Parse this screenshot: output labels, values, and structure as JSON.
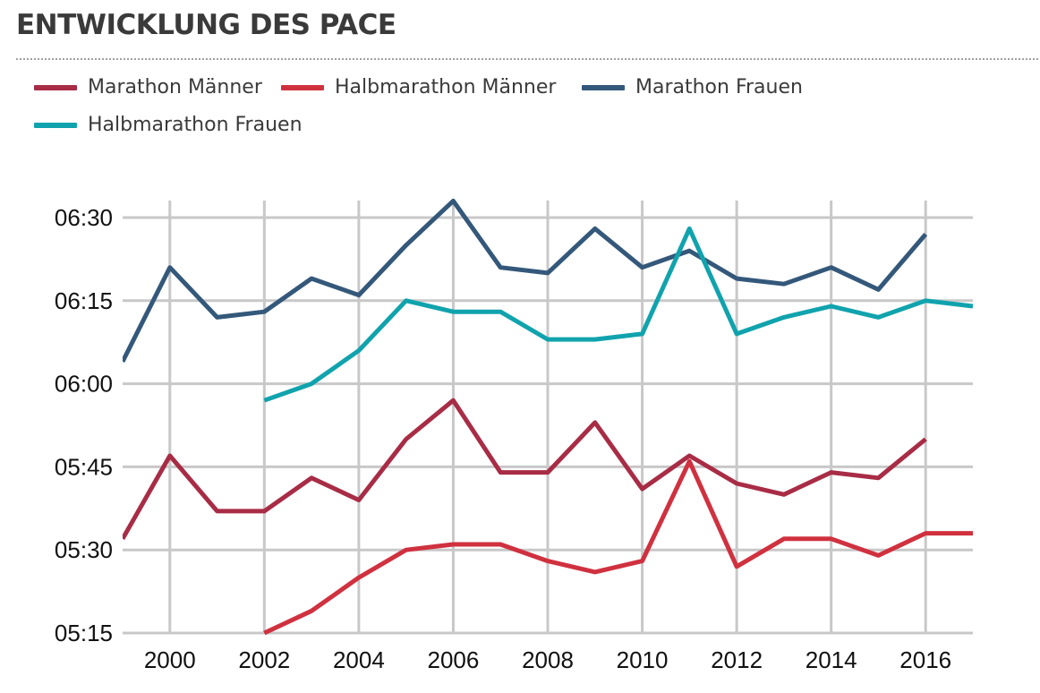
{
  "title": "ENTWICKLUNG DES PACE",
  "colors": {
    "marathon_maenner": "#a82c45",
    "halbmarathon_maenner": "#d0313f",
    "marathon_frauen": "#34587a",
    "halbmarathon_frauen": "#10a3ad",
    "grid": "#c8c8c8"
  },
  "chart_data": {
    "type": "line",
    "grid": true,
    "legend_placement": "top-left",
    "xlim": [
      1999,
      2017
    ],
    "ylim": [
      "05:15",
      "06:33"
    ],
    "x_ticks": [
      "2000",
      "2002",
      "2004",
      "2006",
      "2008",
      "2010",
      "2012",
      "2014",
      "2016"
    ],
    "y_ticks": [
      "05:15",
      "05:30",
      "05:45",
      "06:00",
      "06:15",
      "06:30"
    ],
    "series": [
      {
        "name": "Marathon Männer",
        "color": "#a82c45",
        "x": [
          1999,
          2000,
          2001,
          2002,
          2003,
          2004,
          2005,
          2006,
          2007,
          2008,
          2009,
          2010,
          2011,
          2012,
          2013,
          2014,
          2015,
          2016
        ],
        "y": [
          "05:32",
          "05:47",
          "05:37",
          "05:37",
          "05:43",
          "05:39",
          "05:50",
          "05:57",
          "05:44",
          "05:44",
          "05:53",
          "05:41",
          "05:47",
          "05:42",
          "05:40",
          "05:44",
          "05:43",
          "05:50"
        ]
      },
      {
        "name": "Halbmarathon Männer",
        "color": "#d0313f",
        "x": [
          2002,
          2003,
          2004,
          2005,
          2006,
          2007,
          2008,
          2009,
          2010,
          2011,
          2012,
          2013,
          2014,
          2015,
          2016,
          2017
        ],
        "y": [
          "05:15",
          "05:19",
          "05:25",
          "05:30",
          "05:31",
          "05:31",
          "05:28",
          "05:26",
          "05:28",
          "05:46",
          "05:27",
          "05:32",
          "05:32",
          "05:29",
          "05:33",
          "05:33"
        ]
      },
      {
        "name": "Marathon Frauen",
        "color": "#34587a",
        "x": [
          1999,
          2000,
          2001,
          2002,
          2003,
          2004,
          2005,
          2006,
          2007,
          2008,
          2009,
          2010,
          2011,
          2012,
          2013,
          2014,
          2015,
          2016
        ],
        "y": [
          "06:04",
          "06:21",
          "06:12",
          "06:13",
          "06:19",
          "06:16",
          "06:25",
          "06:33",
          "06:21",
          "06:20",
          "06:28",
          "06:21",
          "06:24",
          "06:19",
          "06:18",
          "06:21",
          "06:17",
          "06:27"
        ]
      },
      {
        "name": "Halbmarathon Frauen",
        "color": "#10a3ad",
        "x": [
          2002,
          2003,
          2004,
          2005,
          2006,
          2007,
          2008,
          2009,
          2010,
          2011,
          2012,
          2013,
          2014,
          2015,
          2016,
          2017
        ],
        "y": [
          "05:57",
          "06:00",
          "06:06",
          "06:15",
          "06:13",
          "06:13",
          "06:08",
          "06:08",
          "06:09",
          "06:28",
          "06:09",
          "06:12",
          "06:14",
          "06:12",
          "06:15",
          "06:14"
        ]
      }
    ]
  }
}
